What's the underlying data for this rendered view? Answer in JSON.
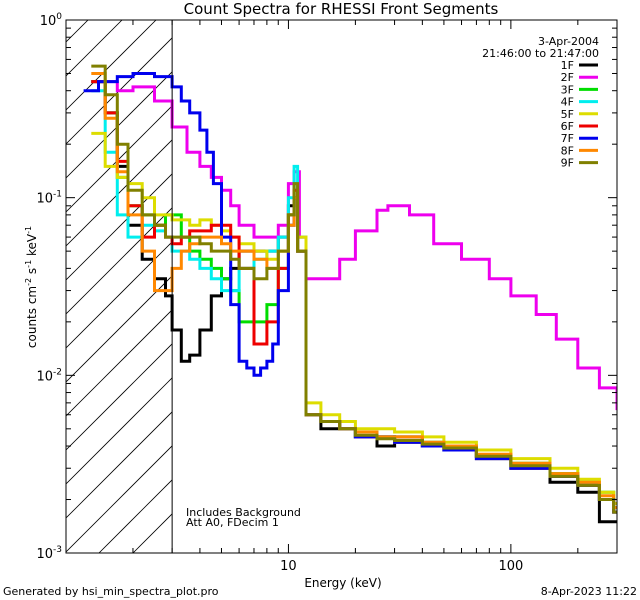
{
  "chart_data": {
    "type": "line",
    "title": "Count Spectra for RHESSI Front Segments",
    "xlabel": "Energy (keV)",
    "ylabel": {
      "base": "counts cm",
      "exp1": "-2",
      "mid1": " s",
      "exp2": "-1",
      "mid2": " keV",
      "exp3": "-1"
    },
    "xscale": "log",
    "yscale": "log",
    "xlim": [
      1,
      300
    ],
    "ylim": [
      0.001,
      1
    ],
    "x_ticks": [
      {
        "value": 10,
        "label": "10"
      },
      {
        "value": 100,
        "label": "100"
      }
    ],
    "y_ticks": [
      {
        "value": 0.001,
        "base": "10",
        "exp": "-3"
      },
      {
        "value": 0.01,
        "base": "10",
        "exp": "-2"
      },
      {
        "value": 0.1,
        "base": "10",
        "exp": "-1"
      },
      {
        "value": 1,
        "base": "10",
        "exp": "0"
      }
    ],
    "hatched_region": [
      1,
      3
    ],
    "date": "3-Apr-2004",
    "time_range": "21:46:00 to 21:47:00",
    "annotations": [
      "Includes Background",
      "Att A0, FDecim 1"
    ],
    "series": [
      {
        "name": "1F",
        "color": "#000000",
        "x": [
          1.3,
          1.5,
          1.7,
          1.9,
          2.2,
          2.5,
          2.8,
          3.0,
          3.3,
          3.6,
          4.0,
          4.5,
          5.0,
          5.5,
          6.0,
          7.0,
          8.0,
          9.0,
          10.0,
          10.6,
          11.0,
          12.0,
          14,
          17,
          20,
          25,
          30,
          40,
          50,
          70,
          100,
          150,
          200,
          250,
          290
        ],
        "y": [
          0.45,
          0.3,
          0.15,
          0.07,
          0.045,
          0.035,
          0.028,
          0.018,
          0.012,
          0.013,
          0.018,
          0.028,
          0.035,
          0.04,
          0.05,
          0.05,
          0.05,
          0.06,
          0.09,
          0.1,
          0.05,
          0.006,
          0.005,
          0.005,
          0.0045,
          0.004,
          0.0045,
          0.004,
          0.004,
          0.0035,
          0.003,
          0.0025,
          0.0022,
          0.0015,
          0.0015
        ]
      },
      {
        "name": "2F",
        "color": "#ee00ee",
        "x": [
          1.3,
          1.5,
          1.7,
          2.0,
          2.5,
          3.0,
          3.5,
          4.0,
          4.5,
          5.0,
          5.5,
          6.0,
          7.0,
          8.0,
          9.0,
          10.0,
          10.6,
          11.2,
          12.0,
          14,
          17,
          20,
          25,
          28,
          35,
          45,
          60,
          80,
          100,
          130,
          160,
          200,
          250,
          300
        ],
        "y": [
          0.45,
          0.45,
          0.4,
          0.42,
          0.35,
          0.25,
          0.18,
          0.15,
          0.13,
          0.11,
          0.09,
          0.07,
          0.06,
          0.06,
          0.07,
          0.12,
          0.14,
          0.06,
          0.035,
          0.035,
          0.045,
          0.065,
          0.085,
          0.09,
          0.08,
          0.055,
          0.045,
          0.035,
          0.028,
          0.022,
          0.016,
          0.011,
          0.0085,
          0.0065
        ]
      },
      {
        "name": "3F",
        "color": "#00dd00",
        "x": [
          1.3,
          1.5,
          1.7,
          1.9,
          2.2,
          2.5,
          2.8,
          3.0,
          3.3,
          3.6,
          4.0,
          4.5,
          5.0,
          5.5,
          6.0,
          7.0,
          8.0,
          9.0,
          10.0,
          10.6,
          11.0,
          12.0,
          14,
          17,
          20,
          25,
          30,
          40,
          50,
          70,
          100,
          150,
          200,
          250,
          290
        ],
        "y": [
          0.45,
          0.3,
          0.13,
          0.09,
          0.08,
          0.07,
          0.08,
          0.08,
          0.06,
          0.05,
          0.045,
          0.04,
          0.035,
          0.03,
          0.02,
          0.02,
          0.025,
          0.04,
          0.08,
          0.12,
          0.05,
          0.006,
          0.0055,
          0.005,
          0.0045,
          0.0045,
          0.0042,
          0.0042,
          0.004,
          0.0035,
          0.0032,
          0.0028,
          0.0025,
          0.0022,
          0.0018
        ]
      },
      {
        "name": "4F",
        "color": "#00eeee",
        "x": [
          1.3,
          1.5,
          1.7,
          1.9,
          2.2,
          2.5,
          2.8,
          3.0,
          3.3,
          3.6,
          4.0,
          4.5,
          5.0,
          5.5,
          6.0,
          7.0,
          8.0,
          9.0,
          10.0,
          10.6,
          11.0,
          12.0,
          14,
          17,
          20,
          25,
          30,
          40,
          50,
          70,
          100,
          150,
          200,
          250,
          290
        ],
        "y": [
          0.4,
          0.18,
          0.08,
          0.06,
          0.07,
          0.065,
          0.06,
          0.05,
          0.05,
          0.045,
          0.04,
          0.035,
          0.03,
          0.03,
          0.04,
          0.045,
          0.05,
          0.06,
          0.1,
          0.15,
          0.06,
          0.006,
          0.0055,
          0.005,
          0.0045,
          0.0045,
          0.0042,
          0.004,
          0.0038,
          0.0034,
          0.003,
          0.0027,
          0.0024,
          0.002,
          0.0017
        ]
      },
      {
        "name": "5F",
        "color": "#dddd00",
        "x": [
          1.3,
          1.5,
          1.7,
          1.9,
          2.2,
          2.5,
          2.8,
          3.0,
          3.3,
          3.6,
          4.0,
          4.5,
          5.0,
          5.5,
          6.0,
          7.0,
          8.0,
          9.0,
          10.0,
          10.6,
          11.0,
          12.0,
          14,
          17,
          20,
          25,
          30,
          40,
          50,
          70,
          100,
          150,
          200,
          250,
          290
        ],
        "y": [
          0.23,
          0.15,
          0.13,
          0.12,
          0.1,
          0.08,
          0.08,
          0.075,
          0.075,
          0.07,
          0.075,
          0.07,
          0.065,
          0.06,
          0.055,
          0.05,
          0.045,
          0.05,
          0.08,
          0.11,
          0.06,
          0.007,
          0.006,
          0.0055,
          0.005,
          0.005,
          0.0048,
          0.0045,
          0.0042,
          0.0038,
          0.0034,
          0.003,
          0.0026,
          0.0022,
          0.0019
        ]
      },
      {
        "name": "6F",
        "color": "#ee0000",
        "x": [
          1.3,
          1.5,
          1.7,
          1.9,
          2.2,
          2.5,
          2.8,
          3.0,
          3.3,
          3.6,
          4.0,
          4.5,
          5.0,
          5.5,
          6.0,
          7.0,
          8.0,
          9.0,
          10.0,
          10.6,
          11.0,
          12.0,
          14,
          17,
          20,
          25,
          30,
          40,
          50,
          70,
          100,
          150,
          200,
          250,
          290
        ],
        "y": [
          0.45,
          0.3,
          0.16,
          0.09,
          0.06,
          0.07,
          0.06,
          0.055,
          0.06,
          0.065,
          0.065,
          0.07,
          0.07,
          0.06,
          0.04,
          0.015,
          0.02,
          0.04,
          0.08,
          0.11,
          0.05,
          0.006,
          0.0055,
          0.005,
          0.0045,
          0.0045,
          0.0042,
          0.004,
          0.0038,
          0.0034,
          0.003,
          0.0027,
          0.0024,
          0.002,
          0.0017
        ]
      },
      {
        "name": "7F",
        "color": "#0000ee",
        "x": [
          1.2,
          1.4,
          1.7,
          2.0,
          2.5,
          3.0,
          3.3,
          3.6,
          4.0,
          4.3,
          4.6,
          5.0,
          5.5,
          6.0,
          6.5,
          7.0,
          7.5,
          8.0,
          8.5,
          9.0,
          10.0,
          10.6,
          11.0,
          12.0,
          14,
          17,
          20,
          25,
          30,
          40,
          50,
          70,
          100,
          150,
          200,
          250,
          290
        ],
        "y": [
          0.4,
          0.45,
          0.48,
          0.5,
          0.48,
          0.42,
          0.35,
          0.3,
          0.24,
          0.18,
          0.12,
          0.06,
          0.025,
          0.012,
          0.011,
          0.01,
          0.011,
          0.012,
          0.015,
          0.03,
          0.07,
          0.1,
          0.05,
          0.006,
          0.0055,
          0.005,
          0.0045,
          0.0045,
          0.0042,
          0.004,
          0.0038,
          0.0034,
          0.003,
          0.0027,
          0.0024,
          0.002,
          0.0017
        ]
      },
      {
        "name": "8F",
        "color": "#ff8800",
        "x": [
          1.3,
          1.5,
          1.7,
          1.9,
          2.2,
          2.5,
          2.8,
          3.0,
          3.3,
          3.6,
          4.0,
          4.5,
          5.0,
          5.5,
          6.0,
          7.0,
          8.0,
          9.0,
          10.0,
          10.6,
          11.0,
          12.0,
          14,
          17,
          20,
          25,
          30,
          40,
          50,
          70,
          100,
          150,
          200,
          250,
          290
        ],
        "y": [
          0.5,
          0.28,
          0.14,
          0.08,
          0.05,
          0.03,
          0.03,
          0.04,
          0.05,
          0.055,
          0.06,
          0.06,
          0.055,
          0.05,
          0.05,
          0.045,
          0.04,
          0.05,
          0.07,
          0.1,
          0.05,
          0.006,
          0.0055,
          0.005,
          0.0048,
          0.0045,
          0.0045,
          0.0042,
          0.004,
          0.0036,
          0.0032,
          0.0028,
          0.0025,
          0.0021,
          0.0018
        ]
      },
      {
        "name": "9F",
        "color": "#808000",
        "x": [
          1.3,
          1.5,
          1.7,
          1.9,
          2.2,
          2.5,
          2.8,
          3.0,
          3.3,
          3.6,
          4.0,
          4.5,
          5.0,
          5.5,
          6.0,
          7.0,
          8.0,
          9.0,
          10.0,
          10.6,
          11.0,
          12.0,
          14,
          17,
          20,
          25,
          30,
          40,
          50,
          70,
          100,
          150,
          200,
          250,
          290
        ],
        "y": [
          0.55,
          0.38,
          0.2,
          0.11,
          0.08,
          0.07,
          0.06,
          0.06,
          0.06,
          0.06,
          0.055,
          0.05,
          0.05,
          0.045,
          0.04,
          0.035,
          0.04,
          0.05,
          0.08,
          0.12,
          0.05,
          0.006,
          0.0055,
          0.005,
          0.0046,
          0.0044,
          0.0043,
          0.0041,
          0.0039,
          0.0035,
          0.0031,
          0.0027,
          0.0024,
          0.002,
          0.0017
        ]
      }
    ]
  },
  "footer": {
    "generated_by": "Generated by hsi_min_spectra_plot.pro",
    "timestamp": "8-Apr-2023 11:22"
  }
}
